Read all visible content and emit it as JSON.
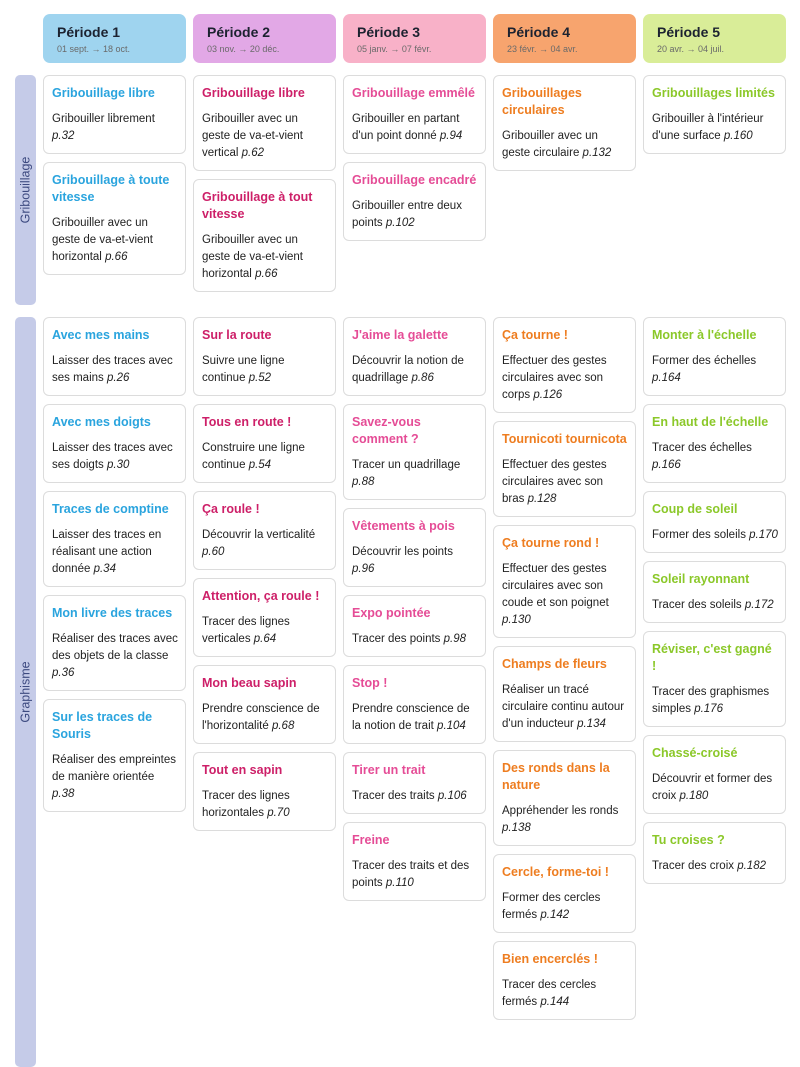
{
  "periods": [
    {
      "label": "Période 1",
      "dates": "01 sept. → 18 oct.",
      "color": "#9fd4ef",
      "accent": "#2aa4de"
    },
    {
      "label": "Période 2",
      "dates": "03 nov. → 20 déc.",
      "color": "#e2a8e6",
      "accent": "#cd1f68"
    },
    {
      "label": "Période 3",
      "dates": "05 janv. → 07 févr.",
      "color": "#f8b1c8",
      "accent": "#e54c96"
    },
    {
      "label": "Période 4",
      "dates": "23 févr. → 04 avr.",
      "color": "#f7a46e",
      "accent": "#ee7d20"
    },
    {
      "label": "Période 5",
      "dates": "20 avr. → 04 juil.",
      "color": "#d9ed98",
      "accent": "#8bc829"
    }
  ],
  "sections": [
    {
      "label": "Gribouillage",
      "columns": [
        [
          {
            "title": "Gribouillage libre",
            "desc": "Gribouiller librement",
            "page": "p.32"
          },
          {
            "title": "Gribouillage à toute vitesse",
            "desc": "Gribouiller avec un geste de va-et-vient horizontal",
            "page": "p.66"
          }
        ],
        [
          {
            "title": "Gribouillage libre",
            "desc": "Gribouiller avec un geste de va-et-vient vertical",
            "page": "p.62"
          },
          {
            "title": "Gribouillage à tout vitesse",
            "desc": "Gribouiller avec un geste de va-et-vient horizontal",
            "page": "p.66"
          }
        ],
        [
          {
            "title": "Gribouillage emmêlé",
            "desc": "Gribouiller en partant d'un point donné",
            "page": "p.94"
          },
          {
            "title": "Gribouillage encadré",
            "desc": "Gribouiller entre deux points",
            "page": "p.102"
          }
        ],
        [
          {
            "title": "Gribouillages circulaires",
            "desc": "Gribouiller avec un geste circulaire",
            "page": "p.132"
          }
        ],
        [
          {
            "title": "Gribouillages limités",
            "desc": "Gribouiller à l'intérieur d'une surface",
            "page": "p.160"
          }
        ]
      ]
    },
    {
      "label": "Graphisme",
      "columns": [
        [
          {
            "title": "Avec mes mains",
            "desc": "Laisser des traces avec ses mains",
            "page": "p.26"
          },
          {
            "title": "Avec mes doigts",
            "desc": "Laisser des traces avec ses doigts",
            "page": "p.30"
          },
          {
            "title": "Traces de comptine",
            "desc": "Laisser des traces en réalisant une action donnée",
            "page": "p.34"
          },
          {
            "title": "Mon livre des traces",
            "desc": "Réaliser des traces avec des objets de la classe",
            "page": "p.36"
          },
          {
            "title": "Sur les traces de Souris",
            "desc": "Réaliser des empreintes de manière orientée",
            "page": "p.38"
          }
        ],
        [
          {
            "title": "Sur la route",
            "desc": "Suivre une ligne continue",
            "page": "p.52"
          },
          {
            "title": "Tous en route !",
            "desc": "Construire une ligne continue",
            "page": "p.54"
          },
          {
            "title": "Ça roule !",
            "desc": "Découvrir la verticalité",
            "page": "p.60"
          },
          {
            "title": "Attention, ça roule !",
            "desc": "Tracer des lignes verticales",
            "page": "p.64"
          },
          {
            "title": "Mon beau sapin",
            "desc": "Prendre conscience de l'horizontalité",
            "page": "p.68"
          },
          {
            "title": "Tout en sapin",
            "desc": "Tracer des lignes horizontales",
            "page": "p.70"
          }
        ],
        [
          {
            "title": "J'aime la galette",
            "desc": "Découvrir la notion de quadrillage",
            "page": "p.86"
          },
          {
            "title": "Savez-vous comment ?",
            "desc": "Tracer un quadrillage",
            "page": "p.88"
          },
          {
            "title": "Vêtements à pois",
            "desc": "Découvrir les points",
            "page": "p.96"
          },
          {
            "title": "Expo pointée",
            "desc": "Tracer des points",
            "page": "p.98"
          },
          {
            "title": "Stop !",
            "desc": "Prendre conscience de la notion de trait",
            "page": "p.104"
          },
          {
            "title": "Tirer un trait",
            "desc": "Tracer des traits",
            "page": "p.106"
          },
          {
            "title": "Freine",
            "desc": "Tracer des traits et des points",
            "page": "p.110"
          }
        ],
        [
          {
            "title": "Ça tourne !",
            "desc": "Effectuer des gestes circulaires avec son corps",
            "page": "p.126"
          },
          {
            "title": "Tournicoti tournicota",
            "desc": "Effectuer des gestes circulaires avec son bras",
            "page": "p.128"
          },
          {
            "title": "Ça tourne rond !",
            "desc": "Effectuer des gestes circulaires avec son coude et son poignet",
            "page": "p.130"
          },
          {
            "title": "Champs de fleurs",
            "desc": "Réaliser un tracé circulaire continu autour d'un inducteur",
            "page": "p.134"
          },
          {
            "title": "Des ronds dans la nature",
            "desc": "Appréhender les ronds",
            "page": "p.138"
          },
          {
            "title": "Cercle, forme-toi !",
            "desc": "Former des cercles fermés",
            "page": "p.142"
          },
          {
            "title": "Bien encerclés !",
            "desc": "Tracer des cercles fermés",
            "page": "p.144"
          }
        ],
        [
          {
            "title": "Monter à l'échelle",
            "desc": "Former des échelles",
            "page": "p.164"
          },
          {
            "title": "En haut de l'échelle",
            "desc": "Tracer des échelles",
            "page": "p.166"
          },
          {
            "title": "Coup de soleil",
            "desc": "Former des soleils",
            "page": "p.170"
          },
          {
            "title": "Soleil rayonnant",
            "desc": "Tracer des soleils",
            "page": "p.172"
          },
          {
            "title": "Réviser, c'est gagné !",
            "desc": "Tracer des graphismes simples",
            "page": "p.176"
          },
          {
            "title": "Chassé-croisé",
            "desc": "Découvrir et former des croix",
            "page": "p.180"
          },
          {
            "title": "Tu croises ?",
            "desc": "Tracer des croix",
            "page": "p.182"
          }
        ]
      ]
    }
  ]
}
